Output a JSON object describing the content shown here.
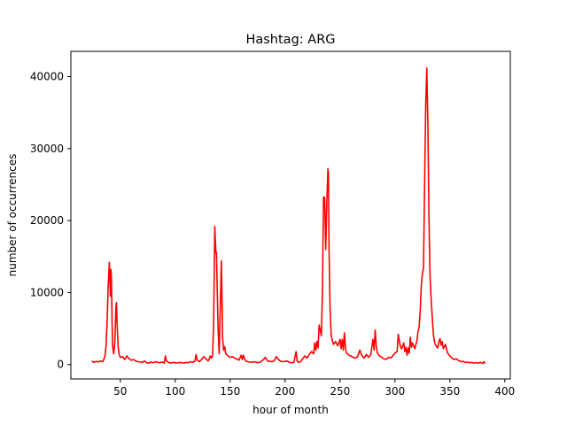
{
  "chart_data": {
    "type": "line",
    "title": "Hashtag: ARG",
    "xlabel": "hour of month",
    "ylabel": "number of occurrences",
    "xlim": [
      5,
      405
    ],
    "ylim": [
      -2000,
      43500
    ],
    "x_ticks": [
      50,
      100,
      150,
      200,
      250,
      300,
      350,
      400
    ],
    "y_ticks": [
      0,
      10000,
      20000,
      30000,
      40000
    ],
    "grid": false,
    "series": [
      {
        "color": "#ff0000",
        "points": [
          [
            24,
            500
          ],
          [
            26,
            300
          ],
          [
            28,
            450
          ],
          [
            30,
            350
          ],
          [
            32,
            500
          ],
          [
            34,
            400
          ],
          [
            35,
            700
          ],
          [
            36,
            1200
          ],
          [
            37,
            2500
          ],
          [
            38,
            6000
          ],
          [
            39,
            11000
          ],
          [
            40,
            14200
          ],
          [
            40.5,
            12000
          ],
          [
            41,
            9500
          ],
          [
            41.5,
            13200
          ],
          [
            42,
            11500
          ],
          [
            42.5,
            6000
          ],
          [
            43,
            2500
          ],
          [
            44,
            1500
          ],
          [
            45,
            3000
          ],
          [
            46,
            8000
          ],
          [
            46.5,
            8600
          ],
          [
            47,
            6000
          ],
          [
            48,
            2500
          ],
          [
            49,
            1400
          ],
          [
            50,
            1000
          ],
          [
            52,
            1100
          ],
          [
            54,
            700
          ],
          [
            56,
            1200
          ],
          [
            58,
            800
          ],
          [
            60,
            600
          ],
          [
            62,
            700
          ],
          [
            64,
            500
          ],
          [
            66,
            400
          ],
          [
            68,
            350
          ],
          [
            70,
            300
          ],
          [
            72,
            500
          ],
          [
            74,
            250
          ],
          [
            76,
            200
          ],
          [
            78,
            350
          ],
          [
            80,
            250
          ],
          [
            82,
            400
          ],
          [
            84,
            300
          ],
          [
            86,
            250
          ],
          [
            88,
            350
          ],
          [
            90,
            200
          ],
          [
            91,
            1200
          ],
          [
            92,
            500
          ],
          [
            94,
            300
          ],
          [
            96,
            200
          ],
          [
            98,
            300
          ],
          [
            100,
            250
          ],
          [
            102,
            200
          ],
          [
            104,
            300
          ],
          [
            106,
            250
          ],
          [
            108,
            200
          ],
          [
            110,
            300
          ],
          [
            112,
            250
          ],
          [
            114,
            400
          ],
          [
            116,
            300
          ],
          [
            118,
            500
          ],
          [
            119,
            1400
          ],
          [
            120,
            600
          ],
          [
            122,
            400
          ],
          [
            124,
            700
          ],
          [
            126,
            1100
          ],
          [
            128,
            800
          ],
          [
            130,
            500
          ],
          [
            131,
            800
          ],
          [
            132,
            1200
          ],
          [
            133,
            900
          ],
          [
            134,
            1200
          ],
          [
            135,
            6000
          ],
          [
            136,
            19200
          ],
          [
            137,
            15500
          ],
          [
            137.5,
            15600
          ],
          [
            138,
            12000
          ],
          [
            139,
            5000
          ],
          [
            140,
            1500
          ],
          [
            141,
            8000
          ],
          [
            142,
            14400
          ],
          [
            142.5,
            10000
          ],
          [
            143,
            4000
          ],
          [
            144,
            2000
          ],
          [
            145,
            2500
          ],
          [
            146,
            1500
          ],
          [
            148,
            1200
          ],
          [
            150,
            1000
          ],
          [
            152,
            1100
          ],
          [
            154,
            900
          ],
          [
            156,
            800
          ],
          [
            158,
            600
          ],
          [
            160,
            1300
          ],
          [
            161,
            700
          ],
          [
            162,
            1300
          ],
          [
            164,
            500
          ],
          [
            166,
            400
          ],
          [
            168,
            350
          ],
          [
            170,
            300
          ],
          [
            172,
            400
          ],
          [
            174,
            300
          ],
          [
            176,
            250
          ],
          [
            178,
            400
          ],
          [
            180,
            650
          ],
          [
            182,
            1000
          ],
          [
            184,
            500
          ],
          [
            186,
            450
          ],
          [
            188,
            400
          ],
          [
            190,
            500
          ],
          [
            192,
            1100
          ],
          [
            194,
            700
          ],
          [
            196,
            450
          ],
          [
            198,
            400
          ],
          [
            200,
            450
          ],
          [
            202,
            500
          ],
          [
            204,
            300
          ],
          [
            206,
            250
          ],
          [
            208,
            300
          ],
          [
            210,
            1800
          ],
          [
            211,
            500
          ],
          [
            212,
            300
          ],
          [
            214,
            400
          ],
          [
            216,
            800
          ],
          [
            218,
            1200
          ],
          [
            220,
            900
          ],
          [
            222,
            1400
          ],
          [
            224,
            1800
          ],
          [
            226,
            1500
          ],
          [
            227,
            3000
          ],
          [
            228,
            2000
          ],
          [
            229,
            3200
          ],
          [
            230,
            2300
          ],
          [
            231,
            5500
          ],
          [
            232,
            4800
          ],
          [
            233,
            4000
          ],
          [
            234,
            10000
          ],
          [
            235,
            23300
          ],
          [
            235.5,
            22800
          ],
          [
            236,
            23200
          ],
          [
            237,
            16000
          ],
          [
            238,
            22500
          ],
          [
            239,
            27200
          ],
          [
            239.5,
            26500
          ],
          [
            240,
            16000
          ],
          [
            241,
            7500
          ],
          [
            242,
            4000
          ],
          [
            244,
            2800
          ],
          [
            246,
            3200
          ],
          [
            248,
            2600
          ],
          [
            250,
            3500
          ],
          [
            251,
            2200
          ],
          [
            252,
            3500
          ],
          [
            253,
            2000
          ],
          [
            254,
            4400
          ],
          [
            255,
            2200
          ],
          [
            256,
            1600
          ],
          [
            258,
            1300
          ],
          [
            260,
            1200
          ],
          [
            262,
            1000
          ],
          [
            264,
            900
          ],
          [
            266,
            1100
          ],
          [
            268,
            2000
          ],
          [
            270,
            1200
          ],
          [
            272,
            900
          ],
          [
            274,
            1400
          ],
          [
            276,
            1000
          ],
          [
            278,
            1400
          ],
          [
            280,
            3500
          ],
          [
            281,
            2000
          ],
          [
            282,
            4800
          ],
          [
            283,
            2500
          ],
          [
            284,
            1600
          ],
          [
            286,
            1200
          ],
          [
            288,
            1000
          ],
          [
            290,
            800
          ],
          [
            292,
            700
          ],
          [
            294,
            1000
          ],
          [
            296,
            900
          ],
          [
            298,
            1200
          ],
          [
            300,
            1600
          ],
          [
            302,
            1800
          ],
          [
            303,
            4200
          ],
          [
            304,
            3300
          ],
          [
            305,
            2500
          ],
          [
            306,
            2200
          ],
          [
            308,
            3000
          ],
          [
            309,
            1800
          ],
          [
            310,
            2400
          ],
          [
            311,
            1300
          ],
          [
            312,
            2300
          ],
          [
            313,
            1600
          ],
          [
            314,
            3800
          ],
          [
            315,
            2400
          ],
          [
            316,
            3000
          ],
          [
            318,
            2200
          ],
          [
            320,
            3300
          ],
          [
            321,
            4600
          ],
          [
            322,
            5200
          ],
          [
            323,
            7500
          ],
          [
            324,
            11000
          ],
          [
            325,
            12600
          ],
          [
            326,
            13500
          ],
          [
            327,
            25000
          ],
          [
            328,
            36000
          ],
          [
            329,
            41200
          ],
          [
            330,
            33000
          ],
          [
            331,
            20000
          ],
          [
            332,
            12000
          ],
          [
            333,
            9000
          ],
          [
            334,
            6500
          ],
          [
            335,
            4200
          ],
          [
            336,
            3200
          ],
          [
            337,
            2700
          ],
          [
            338,
            2500
          ],
          [
            339,
            2300
          ],
          [
            340,
            3200
          ],
          [
            341,
            3600
          ],
          [
            342,
            2700
          ],
          [
            343,
            3200
          ],
          [
            344,
            2200
          ],
          [
            345,
            2500
          ],
          [
            346,
            2800
          ],
          [
            347,
            2100
          ],
          [
            348,
            1600
          ],
          [
            350,
            1200
          ],
          [
            352,
            900
          ],
          [
            354,
            700
          ],
          [
            356,
            800
          ],
          [
            358,
            550
          ],
          [
            360,
            400
          ],
          [
            362,
            450
          ],
          [
            364,
            300
          ],
          [
            366,
            350
          ],
          [
            368,
            250
          ],
          [
            370,
            300
          ],
          [
            372,
            200
          ],
          [
            374,
            250
          ],
          [
            376,
            200
          ],
          [
            378,
            300
          ],
          [
            380,
            150
          ],
          [
            381,
            400
          ],
          [
            382,
            150
          ]
        ]
      }
    ]
  }
}
